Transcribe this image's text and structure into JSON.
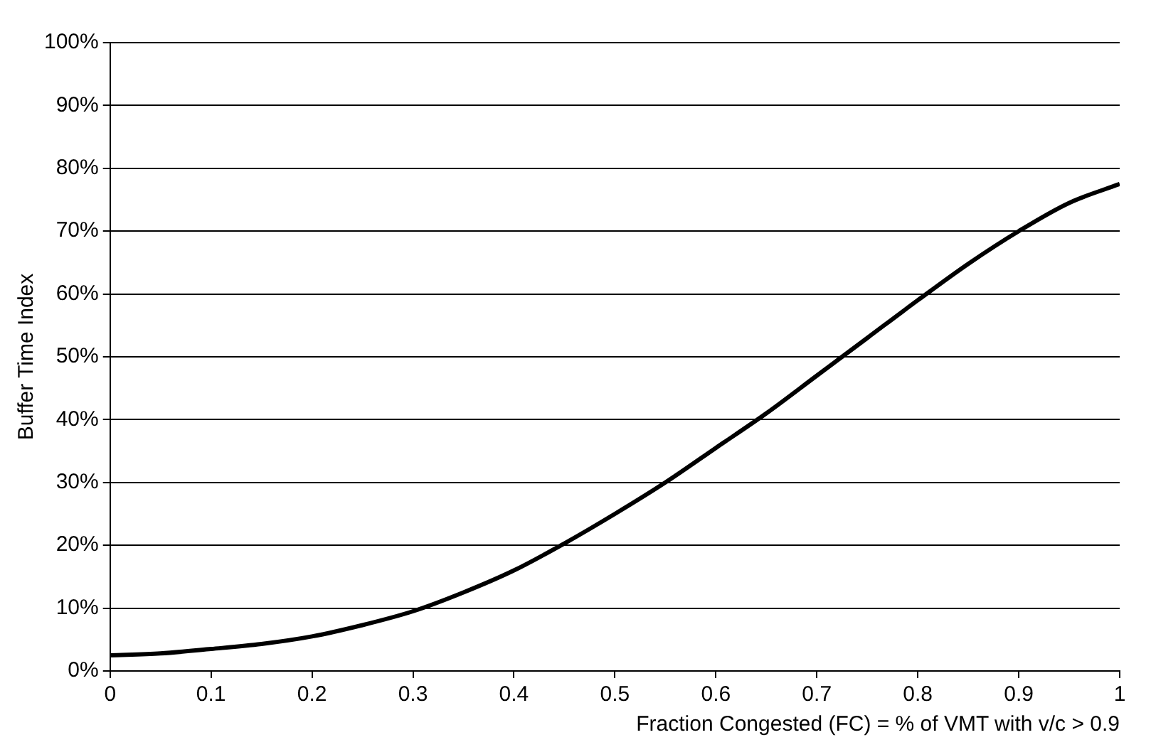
{
  "chart_data": {
    "type": "line",
    "xlabel": "Fraction Congested (FC) = % of VMT with v/c > 0.9",
    "ylabel": "Buffer Time Index",
    "x": [
      0,
      0.05,
      0.1,
      0.15,
      0.2,
      0.25,
      0.3,
      0.35,
      0.4,
      0.45,
      0.5,
      0.55,
      0.6,
      0.65,
      0.7,
      0.75,
      0.8,
      0.85,
      0.9,
      0.95,
      1
    ],
    "series": [
      {
        "color": "#000000",
        "values": [
          2.5,
          2.8,
          3.5,
          4.3,
          5.5,
          7.3,
          9.5,
          12.5,
          16,
          20.3,
          25,
          30,
          35.5,
          41,
          47,
          53,
          59,
          64.8,
          70,
          74.5,
          77.5
        ]
      }
    ],
    "xlim": [
      0,
      1
    ],
    "xticks": [
      0,
      0.1,
      0.2,
      0.3,
      0.4,
      0.5,
      0.6,
      0.7,
      0.8,
      0.9,
      1
    ],
    "ylim": [
      0,
      100
    ],
    "yticks": [
      {
        "value": 0,
        "label": "0%"
      },
      {
        "value": 10,
        "label": "10%"
      },
      {
        "value": 20,
        "label": "20%"
      },
      {
        "value": 30,
        "label": "30%"
      },
      {
        "value": 40,
        "label": "40%"
      },
      {
        "value": 50,
        "label": "50%"
      },
      {
        "value": 60,
        "label": "60%"
      },
      {
        "value": 70,
        "label": "70%"
      },
      {
        "value": 80,
        "label": "80%"
      },
      {
        "value": 90,
        "label": "90%"
      },
      {
        "value": 100,
        "label": "100%"
      }
    ],
    "grid": "y",
    "legend": false,
    "marker": "none",
    "line_style": "solid"
  }
}
